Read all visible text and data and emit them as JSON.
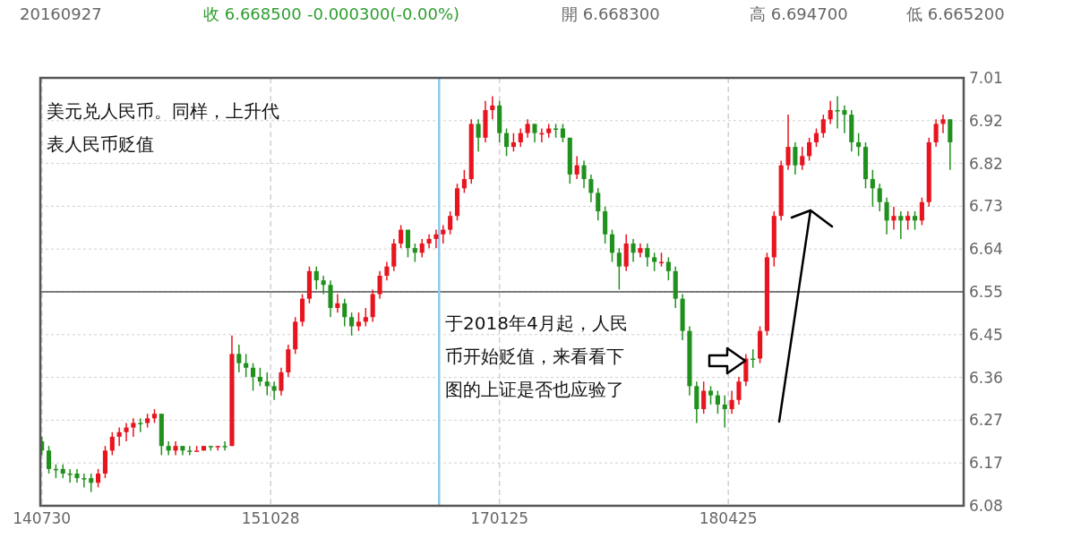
{
  "chart_data": {
    "type": "candlestick",
    "annotations": [
      "20160927",
      "收 6.668500",
      "-0.000300(-0.00%)",
      "開 6.668300",
      "高 6.694700",
      "低 6.665200",
      "美元兑人民币。同样，上升代表人民币贬值",
      "于2018年4月起，人民币开始贬值，来看看下图的上证是否也应验了"
    ],
    "x": [
      "2014-07-30",
      "2014-08-13",
      "2014-08-27",
      "2014-09-10",
      "2014-09-24",
      "2014-10-08",
      "2014-10-22",
      "2014-11-05",
      "2014-11-19",
      "2014-12-03",
      "2014-12-17",
      "2014-12-31",
      "2015-01-14",
      "2015-01-28",
      "2015-02-11",
      "2015-02-25",
      "2015-03-11",
      "2015-03-25",
      "2015-04-08",
      "2015-04-22",
      "2015-05-06",
      "2015-05-20",
      "2015-06-03",
      "2015-06-17",
      "2015-07-01",
      "2015-07-15",
      "2015-07-29",
      "2015-08-12",
      "2015-08-26",
      "2015-09-09",
      "2015-09-23",
      "2015-10-07",
      "2015-10-21",
      "2015-11-04",
      "2015-11-18",
      "2015-12-02",
      "2015-12-16",
      "2015-12-30",
      "2016-01-13",
      "2016-01-27",
      "2016-02-10",
      "2016-02-24",
      "2016-03-09",
      "2016-03-23",
      "2016-04-06",
      "2016-04-20",
      "2016-05-04",
      "2016-05-18",
      "2016-06-01",
      "2016-06-15",
      "2016-06-29",
      "2016-07-13",
      "2016-07-27",
      "2016-08-10",
      "2016-08-24",
      "2016-09-07",
      "2016-09-21",
      "2016-10-05",
      "2016-10-19",
      "2016-11-02",
      "2016-11-16",
      "2016-11-30",
      "2016-12-14",
      "2016-12-28",
      "2017-01-11",
      "2017-01-25",
      "2017-02-08",
      "2017-02-22",
      "2017-03-08",
      "2017-03-22",
      "2017-04-05",
      "2017-04-19",
      "2017-05-03",
      "2017-05-17",
      "2017-05-31",
      "2017-06-14",
      "2017-06-28",
      "2017-07-12",
      "2017-07-26",
      "2017-08-09",
      "2017-08-23",
      "2017-09-06",
      "2017-09-20",
      "2017-10-04",
      "2017-10-18",
      "2017-11-01",
      "2017-11-15",
      "2017-11-29",
      "2017-12-13",
      "2017-12-27",
      "2018-01-10",
      "2018-01-24",
      "2018-02-07",
      "2018-02-21",
      "2018-03-07",
      "2018-03-21",
      "2018-04-04",
      "2018-04-18",
      "2018-05-02",
      "2018-05-16",
      "2018-05-30",
      "2018-06-13",
      "2018-06-27",
      "2018-07-11",
      "2018-07-25",
      "2018-08-08",
      "2018-08-22",
      "2018-09-05",
      "2018-09-19",
      "2018-10-03",
      "2018-10-17",
      "2018-10-31",
      "2018-11-14",
      "2018-11-28",
      "2018-12-12",
      "2018-12-26",
      "2019-01-09",
      "2019-01-23",
      "2019-02-06",
      "2019-02-20",
      "2019-03-06",
      "2019-03-20",
      "2019-04-03",
      "2019-04-17",
      "2019-05-01",
      "2019-05-15",
      "2019-05-29",
      "2019-06-12",
      "2019-06-26",
      "2019-07-10"
    ],
    "ohlc": [
      [
        6.22,
        6.23,
        6.19,
        6.2
      ],
      [
        6.2,
        6.21,
        6.15,
        6.16
      ],
      [
        6.16,
        6.17,
        6.14,
        6.16
      ],
      [
        6.16,
        6.17,
        6.14,
        6.15
      ],
      [
        6.15,
        6.16,
        6.13,
        6.15
      ],
      [
        6.15,
        6.16,
        6.13,
        6.14
      ],
      [
        6.14,
        6.15,
        6.12,
        6.14
      ],
      [
        6.14,
        6.15,
        6.11,
        6.13
      ],
      [
        6.13,
        6.16,
        6.12,
        6.15
      ],
      [
        6.15,
        6.21,
        6.14,
        6.2
      ],
      [
        6.2,
        6.24,
        6.19,
        6.23
      ],
      [
        6.23,
        6.25,
        6.21,
        6.24
      ],
      [
        6.24,
        6.26,
        6.22,
        6.25
      ],
      [
        6.25,
        6.27,
        6.23,
        6.26
      ],
      [
        6.26,
        6.27,
        6.24,
        6.26
      ],
      [
        6.26,
        6.28,
        6.25,
        6.27
      ],
      [
        6.27,
        6.29,
        6.26,
        6.28
      ],
      [
        6.28,
        6.28,
        6.19,
        6.21
      ],
      [
        6.21,
        6.22,
        6.19,
        6.2
      ],
      [
        6.2,
        6.22,
        6.19,
        6.21
      ],
      [
        6.21,
        6.21,
        6.19,
        6.2
      ],
      [
        6.2,
        6.21,
        6.19,
        6.2
      ],
      [
        6.2,
        6.21,
        6.2,
        6.2
      ],
      [
        6.2,
        6.21,
        6.2,
        6.21
      ],
      [
        6.21,
        6.21,
        6.2,
        6.21
      ],
      [
        6.21,
        6.21,
        6.2,
        6.21
      ],
      [
        6.21,
        6.22,
        6.2,
        6.21
      ],
      [
        6.21,
        6.45,
        6.21,
        6.41
      ],
      [
        6.41,
        6.43,
        6.37,
        6.39
      ],
      [
        6.39,
        6.41,
        6.36,
        6.38
      ],
      [
        6.38,
        6.39,
        6.33,
        6.36
      ],
      [
        6.36,
        6.38,
        6.34,
        6.35
      ],
      [
        6.35,
        6.37,
        6.32,
        6.34
      ],
      [
        6.34,
        6.35,
        6.31,
        6.33
      ],
      [
        6.33,
        6.38,
        6.32,
        6.37
      ],
      [
        6.37,
        6.43,
        6.36,
        6.42
      ],
      [
        6.42,
        6.49,
        6.41,
        6.48
      ],
      [
        6.48,
        6.54,
        6.47,
        6.53
      ],
      [
        6.53,
        6.6,
        6.52,
        6.59
      ],
      [
        6.59,
        6.6,
        6.55,
        6.57
      ],
      [
        6.57,
        6.58,
        6.54,
        6.56
      ],
      [
        6.56,
        6.57,
        6.49,
        6.51
      ],
      [
        6.51,
        6.54,
        6.5,
        6.52
      ],
      [
        6.52,
        6.53,
        6.47,
        6.49
      ],
      [
        6.49,
        6.5,
        6.45,
        6.47
      ],
      [
        6.47,
        6.5,
        6.46,
        6.48
      ],
      [
        6.48,
        6.51,
        6.47,
        6.49
      ],
      [
        6.49,
        6.55,
        6.48,
        6.54
      ],
      [
        6.54,
        6.59,
        6.53,
        6.58
      ],
      [
        6.58,
        6.61,
        6.57,
        6.6
      ],
      [
        6.6,
        6.66,
        6.59,
        6.65
      ],
      [
        6.65,
        6.69,
        6.64,
        6.68
      ],
      [
        6.68,
        6.68,
        6.62,
        6.64
      ],
      [
        6.64,
        6.65,
        6.61,
        6.63
      ],
      [
        6.63,
        6.66,
        6.62,
        6.65
      ],
      [
        6.65,
        6.67,
        6.64,
        6.66
      ],
      [
        6.66,
        6.68,
        6.64,
        6.67
      ],
      [
        6.67,
        6.69,
        6.65,
        6.68
      ],
      [
        6.68,
        6.72,
        6.67,
        6.71
      ],
      [
        6.71,
        6.78,
        6.7,
        6.77
      ],
      [
        6.77,
        6.81,
        6.76,
        6.79
      ],
      [
        6.79,
        6.92,
        6.78,
        6.91
      ],
      [
        6.91,
        6.92,
        6.85,
        6.88
      ],
      [
        6.88,
        6.96,
        6.87,
        6.94
      ],
      [
        6.94,
        6.97,
        6.92,
        6.95
      ],
      [
        6.95,
        6.96,
        6.87,
        6.89
      ],
      [
        6.89,
        6.9,
        6.84,
        6.86
      ],
      [
        6.86,
        6.89,
        6.85,
        6.87
      ],
      [
        6.87,
        6.9,
        6.86,
        6.89
      ],
      [
        6.89,
        6.92,
        6.88,
        6.91
      ],
      [
        6.91,
        6.91,
        6.87,
        6.89
      ],
      [
        6.89,
        6.9,
        6.87,
        6.89
      ],
      [
        6.89,
        6.91,
        6.88,
        6.9
      ],
      [
        6.9,
        6.91,
        6.88,
        6.9
      ],
      [
        6.9,
        6.91,
        6.87,
        6.88
      ],
      [
        6.88,
        6.88,
        6.78,
        6.8
      ],
      [
        6.8,
        6.84,
        6.79,
        6.82
      ],
      [
        6.82,
        6.83,
        6.77,
        6.79
      ],
      [
        6.79,
        6.8,
        6.74,
        6.76
      ],
      [
        6.76,
        6.77,
        6.7,
        6.72
      ],
      [
        6.72,
        6.73,
        6.65,
        6.67
      ],
      [
        6.67,
        6.68,
        6.61,
        6.63
      ],
      [
        6.63,
        6.64,
        6.55,
        6.6
      ],
      [
        6.6,
        6.67,
        6.59,
        6.65
      ],
      [
        6.65,
        6.66,
        6.61,
        6.63
      ],
      [
        6.63,
        6.65,
        6.62,
        6.64
      ],
      [
        6.64,
        6.65,
        6.6,
        6.62
      ],
      [
        6.62,
        6.63,
        6.59,
        6.61
      ],
      [
        6.61,
        6.63,
        6.6,
        6.61
      ],
      [
        6.61,
        6.62,
        6.57,
        6.59
      ],
      [
        6.59,
        6.6,
        6.51,
        6.53
      ],
      [
        6.53,
        6.54,
        6.44,
        6.46
      ],
      [
        6.46,
        6.47,
        6.32,
        6.34
      ],
      [
        6.34,
        6.35,
        6.26,
        6.29
      ],
      [
        6.29,
        6.35,
        6.28,
        6.33
      ],
      [
        6.33,
        6.34,
        6.3,
        6.32
      ],
      [
        6.32,
        6.33,
        6.28,
        6.3
      ],
      [
        6.3,
        6.32,
        6.25,
        6.29
      ],
      [
        6.29,
        6.33,
        6.28,
        6.31
      ],
      [
        6.31,
        6.36,
        6.3,
        6.35
      ],
      [
        6.35,
        6.41,
        6.34,
        6.4
      ],
      [
        6.4,
        6.42,
        6.38,
        6.4
      ],
      [
        6.4,
        6.47,
        6.39,
        6.46
      ],
      [
        6.46,
        6.63,
        6.45,
        6.62
      ],
      [
        6.62,
        6.72,
        6.6,
        6.71
      ],
      [
        6.71,
        6.83,
        6.7,
        6.82
      ],
      [
        6.82,
        6.93,
        6.81,
        6.86
      ],
      [
        6.86,
        6.87,
        6.8,
        6.82
      ],
      [
        6.82,
        6.86,
        6.81,
        6.84
      ],
      [
        6.84,
        6.88,
        6.83,
        6.87
      ],
      [
        6.87,
        6.9,
        6.86,
        6.89
      ],
      [
        6.89,
        6.93,
        6.88,
        6.92
      ],
      [
        6.92,
        6.96,
        6.91,
        6.94
      ],
      [
        6.94,
        6.97,
        6.9,
        6.94
      ],
      [
        6.94,
        6.95,
        6.89,
        6.93
      ],
      [
        6.93,
        6.94,
        6.85,
        6.87
      ],
      [
        6.87,
        6.89,
        6.84,
        6.86
      ],
      [
        6.86,
        6.87,
        6.77,
        6.79
      ],
      [
        6.79,
        6.81,
        6.73,
        6.77
      ],
      [
        6.77,
        6.78,
        6.72,
        6.74
      ],
      [
        6.74,
        6.75,
        6.67,
        6.7
      ],
      [
        6.7,
        6.73,
        6.68,
        6.71
      ],
      [
        6.71,
        6.72,
        6.66,
        6.7
      ],
      [
        6.7,
        6.72,
        6.68,
        6.71
      ],
      [
        6.71,
        6.72,
        6.68,
        6.7
      ],
      [
        6.7,
        6.75,
        6.69,
        6.74
      ],
      [
        6.74,
        6.88,
        6.73,
        6.87
      ],
      [
        6.87,
        6.92,
        6.86,
        6.91
      ],
      [
        6.91,
        6.93,
        6.89,
        6.92
      ],
      [
        6.92,
        6.92,
        6.81,
        6.87
      ]
    ],
    "colors": [
      "#21911e",
      "#21911e",
      "#21911e",
      "#21911e",
      "#21911e",
      "#21911e",
      "#21911e",
      "#21911e",
      "#e8141e",
      "#e8141e",
      "#e8141e",
      "#e8141e",
      "#e8141e",
      "#e8141e",
      "#21911e",
      "#e8141e",
      "#e8141e",
      "#21911e",
      "#21911e",
      "#e8141e",
      "#21911e",
      "#21911e",
      "#e8141e",
      "#e8141e",
      "#21911e",
      "#e8141e",
      "#21911e",
      "#e8141e",
      "#21911e",
      "#21911e",
      "#21911e",
      "#21911e",
      "#21911e",
      "#21911e",
      "#e8141e",
      "#e8141e",
      "#e8141e",
      "#e8141e",
      "#e8141e",
      "#21911e",
      "#21911e",
      "#21911e",
      "#e8141e",
      "#21911e",
      "#21911e",
      "#e8141e",
      "#e8141e",
      "#e8141e",
      "#e8141e",
      "#e8141e",
      "#e8141e",
      "#e8141e",
      "#21911e",
      "#21911e",
      "#e8141e",
      "#e8141e",
      "#e8141e",
      "#e8141e",
      "#e8141e",
      "#e8141e",
      "#e8141e",
      "#e8141e",
      "#21911e",
      "#e8141e",
      "#e8141e",
      "#21911e",
      "#21911e",
      "#e8141e",
      "#e8141e",
      "#e8141e",
      "#21911e",
      "#e8141e",
      "#e8141e",
      "#21911e",
      "#21911e",
      "#21911e",
      "#e8141e",
      "#21911e",
      "#21911e",
      "#21911e",
      "#21911e",
      "#21911e",
      "#21911e",
      "#e8141e",
      "#21911e",
      "#e8141e",
      "#21911e",
      "#21911e",
      "#e8141e",
      "#21911e",
      "#21911e",
      "#21911e",
      "#21911e",
      "#21911e",
      "#e8141e",
      "#21911e",
      "#21911e",
      "#21911e",
      "#e8141e",
      "#e8141e",
      "#e8141e",
      "#21911e",
      "#e8141e",
      "#e8141e",
      "#e8141e",
      "#e8141e",
      "#e8141e",
      "#21911e",
      "#e8141e",
      "#e8141e",
      "#e8141e",
      "#e8141e",
      "#e8141e",
      "#21911e",
      "#21911e",
      "#21911e",
      "#21911e",
      "#21911e",
      "#21911e",
      "#21911e",
      "#21911e",
      "#e8141e",
      "#21911e",
      "#e8141e",
      "#21911e",
      "#e8141e",
      "#e8141e",
      "#e8141e",
      "#e8141e",
      "#21911e"
    ],
    "xlim": [
      "2014-07-27",
      "2019-08-06"
    ],
    "xticks": [
      {
        "value": "2014-07-30",
        "label": "140730"
      },
      {
        "value": "2015-10-28",
        "label": "151028"
      },
      {
        "value": "2017-01-25",
        "label": "170125"
      },
      {
        "value": "2018-04-25",
        "label": "180425"
      }
    ],
    "ylim": [
      6.08,
      7.01
    ],
    "yticks": [
      6.08,
      {
        "value": 6.173,
        "label": "6.17"
      },
      {
        "value": 6.266,
        "label": "6.27"
      },
      {
        "value": 6.359,
        "label": "6.36"
      },
      {
        "value": 6.452,
        "label": "6.45"
      },
      {
        "value": 6.545,
        "label": "6.55"
      },
      {
        "value": 6.638,
        "label": "6.64"
      },
      {
        "value": 6.731,
        "label": "6.73"
      },
      {
        "value": 6.824,
        "label": "6.82"
      },
      {
        "value": 6.917,
        "label": "6.92"
      },
      7.01
    ],
    "ref_lines": [
      {
        "axis": "y",
        "value": 6.545,
        "color": "#555555"
      },
      {
        "axis": "x",
        "value": "2016-09-27",
        "color": "#8ec8f2"
      }
    ],
    "grid": true
  }
}
